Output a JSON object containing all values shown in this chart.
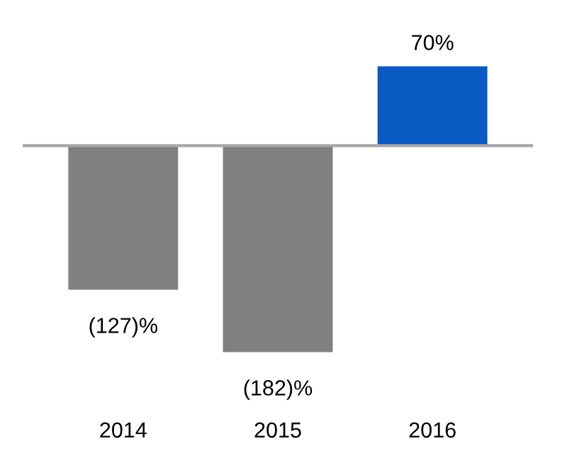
{
  "chart_data": {
    "type": "bar",
    "categories": [
      "2014",
      "2015",
      "2016"
    ],
    "values": [
      -127,
      -182,
      70
    ],
    "colors": [
      "#808080",
      "#808080",
      "#0a5ac4"
    ],
    "value_labels": [
      "(127)%",
      "(182)%",
      "70%"
    ]
  }
}
